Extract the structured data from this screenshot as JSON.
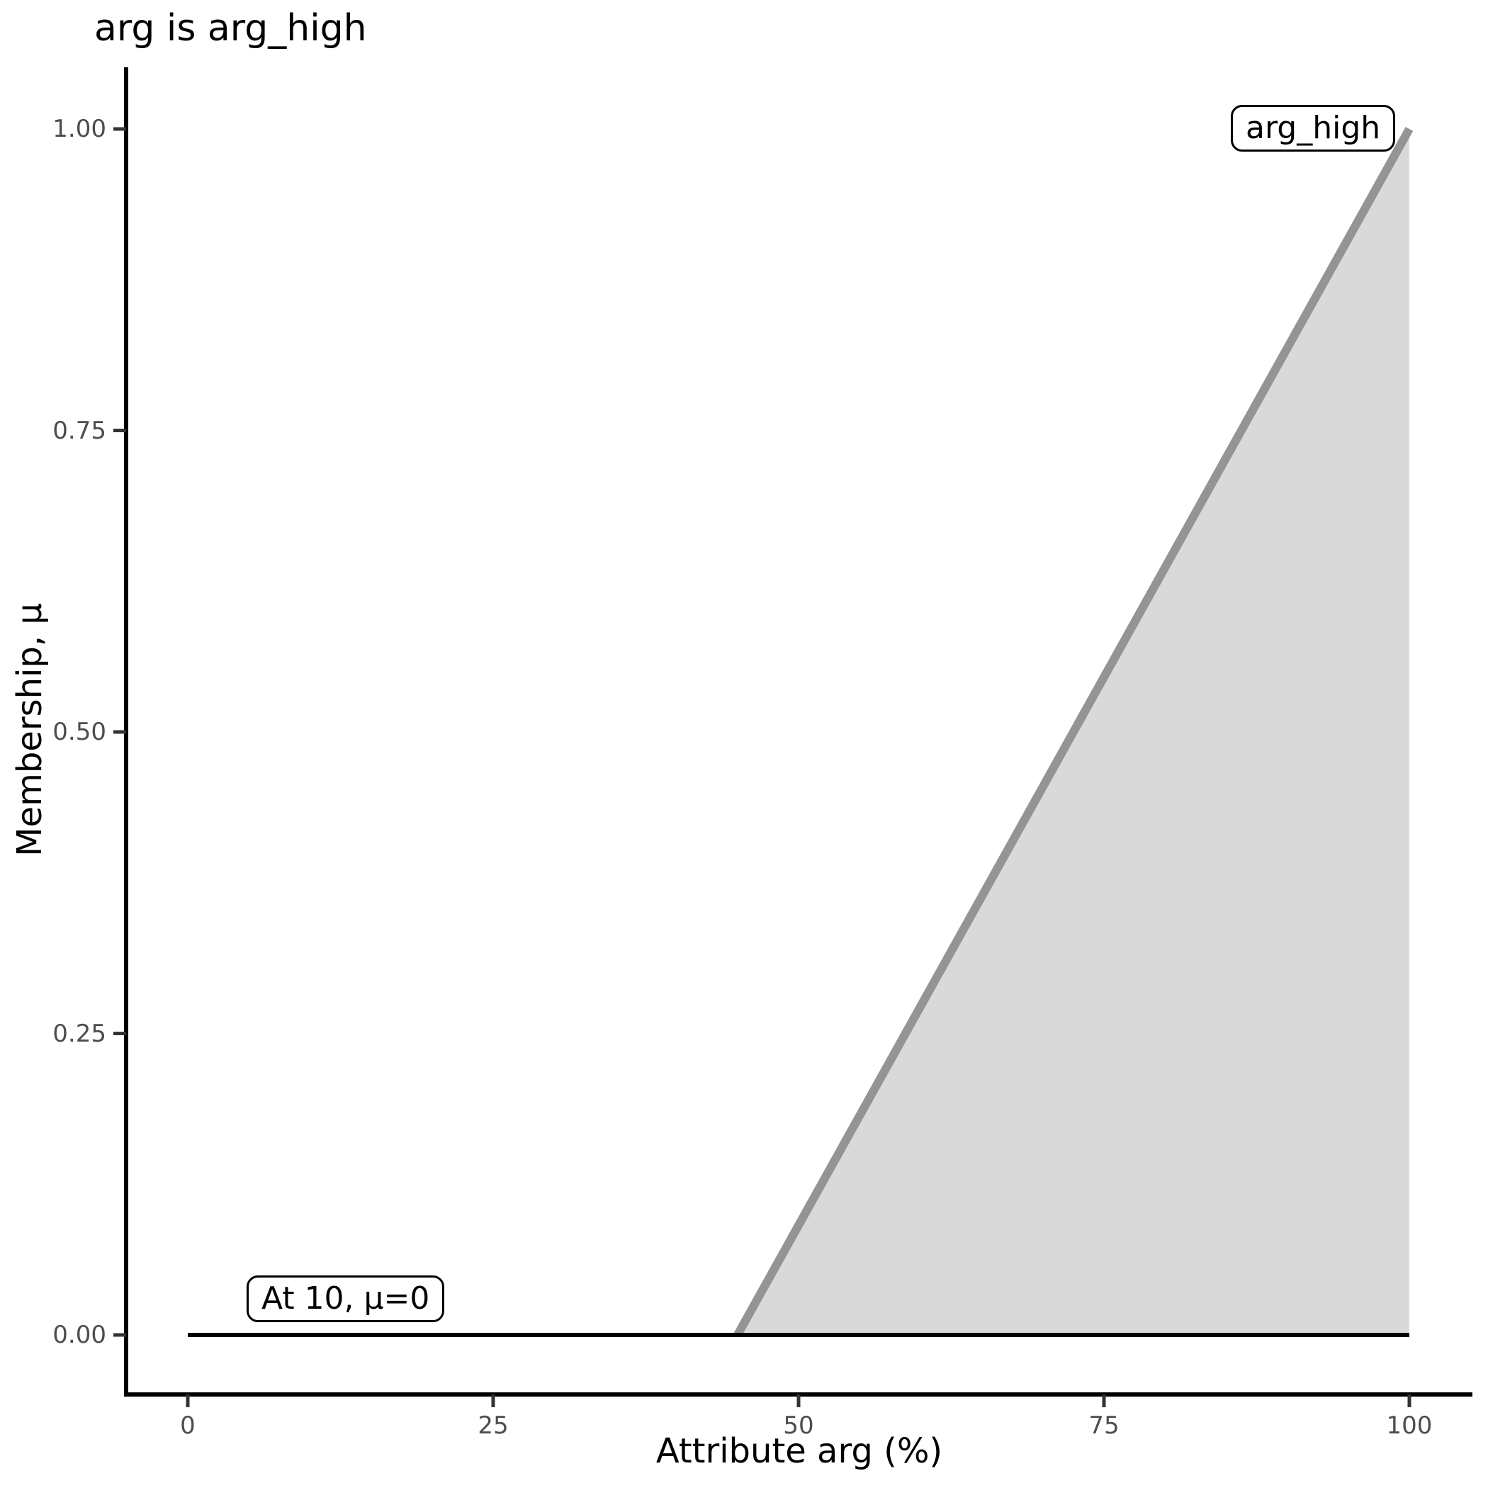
{
  "chart_data": {
    "type": "area",
    "title": "arg is arg_high",
    "xlabel": "Attribute arg (%)",
    "ylabel": "Membership, μ",
    "xlim": [
      0,
      100
    ],
    "ylim": [
      0,
      1
    ],
    "grid": false,
    "legend": "none",
    "x_ticks": [
      0,
      25,
      50,
      75,
      100
    ],
    "x_tick_labels": [
      "0",
      "25",
      "50",
      "75",
      "100"
    ],
    "y_ticks": [
      0,
      0.25,
      0.5,
      0.75,
      1
    ],
    "y_tick_labels": [
      "0.00",
      "0.25",
      "0.50",
      "0.75",
      "1.00"
    ],
    "series": [
      {
        "name": "arg_high membership ramp",
        "type": "area",
        "points": [
          [
            45,
            0
          ],
          [
            100,
            1
          ]
        ],
        "fill_to_zero": true,
        "line_color": "#949494",
        "line_width": 12,
        "fill_color": "#d9d9d9"
      },
      {
        "name": "baseline mu equals 0",
        "type": "line",
        "points": [
          [
            0,
            0
          ],
          [
            100,
            0
          ]
        ],
        "line_color": "#000000",
        "line_width": 6
      }
    ],
    "annotations": [
      {
        "text": "arg_high",
        "x": 88,
        "y": 1.0
      },
      {
        "text": "At 10, μ=0",
        "x": 13,
        "y": 0.04
      }
    ],
    "axis_color": "#000000",
    "tick_color": "#333333",
    "tick_label_color": "#4d4d4d"
  }
}
